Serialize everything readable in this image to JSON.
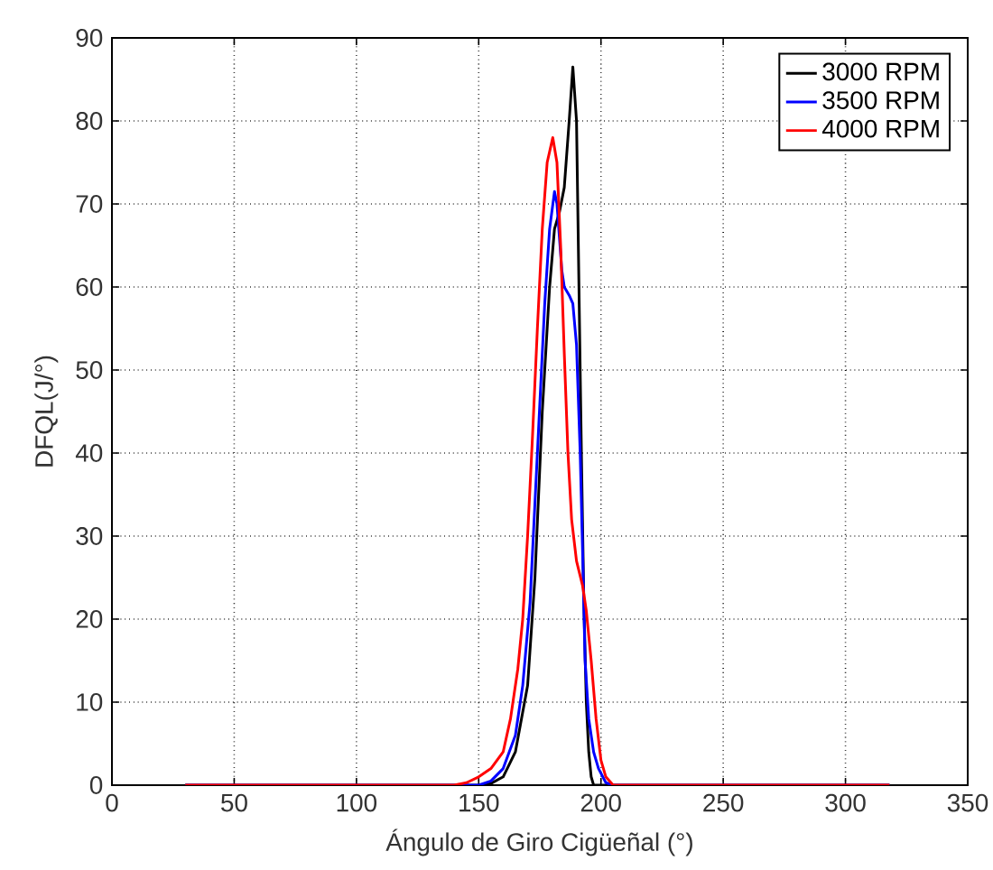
{
  "chart_data": {
    "type": "line",
    "xlabel": "Ángulo de Giro Cigüeñal (°)",
    "ylabel": "DFQL(J/°)",
    "xlim": [
      0,
      350
    ],
    "ylim": [
      0,
      90
    ],
    "xticks": [
      0,
      50,
      100,
      150,
      200,
      250,
      300,
      350
    ],
    "yticks": [
      0,
      10,
      20,
      30,
      40,
      50,
      60,
      70,
      80,
      90
    ],
    "grid": true,
    "legend": "top right",
    "line_style": "solid",
    "marker": "none",
    "series": [
      {
        "name": "3000 RPM",
        "color": "#000000",
        "x": [
          30,
          150,
          155,
          160,
          165,
          170,
          173,
          176,
          179,
          181,
          183,
          185,
          187,
          188.5,
          190,
          191,
          192,
          193,
          194,
          195,
          196,
          197,
          318
        ],
        "values": [
          0,
          0,
          0.2,
          1,
          4,
          12,
          25,
          45,
          60,
          67,
          69,
          72,
          80,
          86.5,
          80,
          60,
          40,
          22,
          10,
          4,
          1,
          0,
          0
        ]
      },
      {
        "name": "3500 RPM",
        "color": "#0000ff",
        "x": [
          30,
          150,
          155,
          160,
          165,
          168,
          171,
          174,
          177,
          179,
          181,
          182,
          184,
          185,
          187,
          188.5,
          190,
          191.5,
          192.5,
          193.5,
          195,
          197,
          199,
          202,
          205,
          318
        ],
        "values": [
          0,
          0,
          0.5,
          2,
          6,
          12,
          22,
          40,
          58,
          67,
          71.5,
          70,
          62,
          60,
          59,
          58,
          53,
          40,
          28,
          15,
          8,
          4,
          2,
          0.3,
          0,
          0
        ]
      },
      {
        "name": "4000 RPM",
        "color": "#ff0000",
        "x": [
          30,
          140,
          145,
          150,
          155,
          160,
          163,
          166,
          168,
          170,
          172,
          174,
          176,
          178,
          180.3,
          182,
          183.5,
          185,
          186.5,
          188,
          190,
          192.5,
          194,
          196,
          198,
          200,
          202,
          205,
          318
        ],
        "values": [
          0,
          0,
          0.3,
          1,
          2,
          4,
          8,
          14,
          20,
          30,
          42,
          55,
          67,
          75,
          78,
          75,
          65,
          52,
          40,
          32,
          27,
          24,
          21,
          15,
          8,
          3,
          1,
          0,
          0
        ]
      }
    ]
  }
}
